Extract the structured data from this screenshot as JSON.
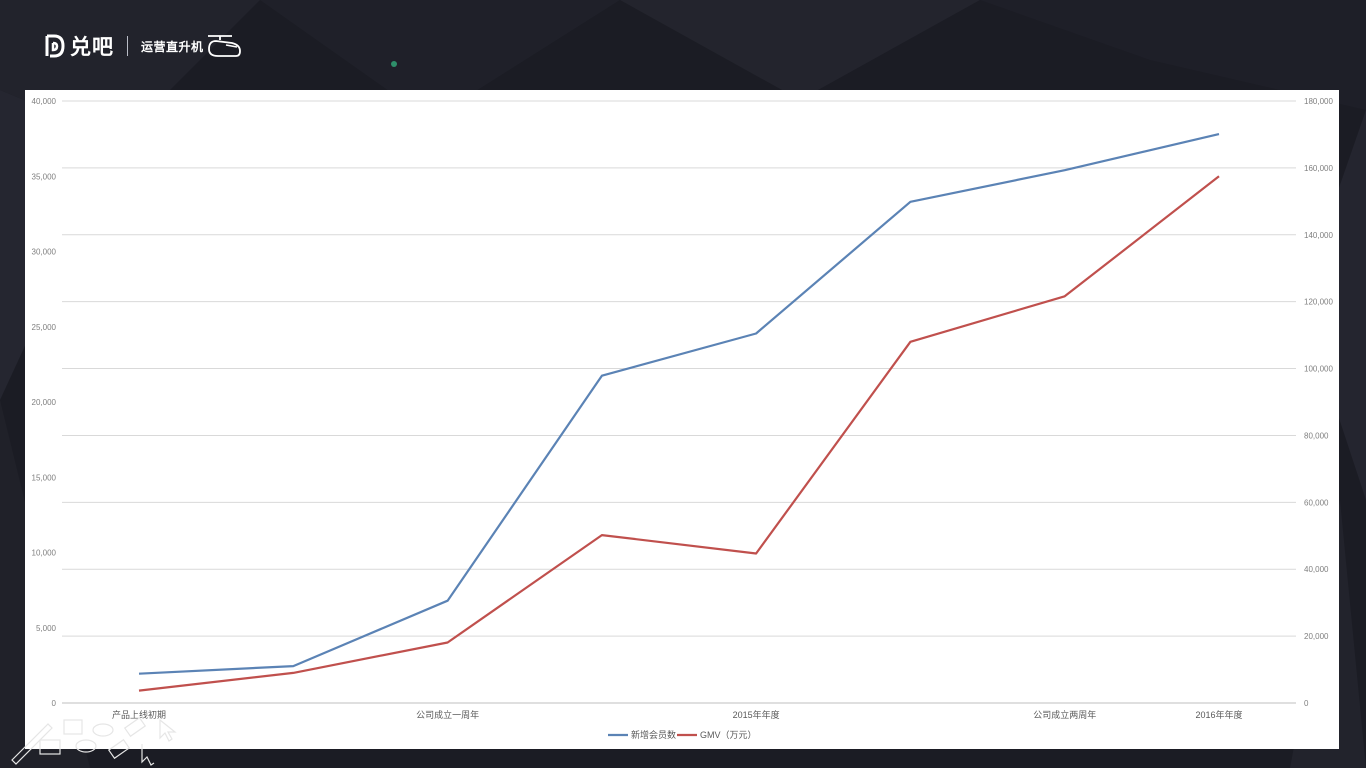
{
  "brand": {
    "name": "兑吧",
    "slogan": "运营直升机"
  },
  "chart_data": {
    "type": "line",
    "title": "",
    "xlabel": "",
    "ylabel": "",
    "categories": [
      "产品上线初期",
      "",
      "公司成立一周年",
      "",
      "2015年年度",
      "",
      "公司成立两周年",
      "2016年年度"
    ],
    "x_tick_labels": [
      {
        "index": 0,
        "label": "产品上线初期"
      },
      {
        "index": 2,
        "label": "公司成立一周年"
      },
      {
        "index": 4,
        "label": "2015年年度"
      },
      {
        "index": 6,
        "label": "公司成立两周年"
      },
      {
        "index": 7,
        "label": "2016年年度"
      }
    ],
    "y_left": {
      "min": 0,
      "max": 40000,
      "step": 5000,
      "ticks": [
        "0",
        "5,000",
        "10,000",
        "15,000",
        "20,000",
        "25,000",
        "30,000",
        "35,000",
        "40,000"
      ]
    },
    "y_right": {
      "min": 0,
      "max": 180000,
      "step": 20000,
      "ticks": [
        "0",
        "20,000",
        "40,000",
        "60,000",
        "80,000",
        "100,000",
        "120,000",
        "140,000",
        "160,000",
        "180,000"
      ]
    },
    "grid": true,
    "legend_position": "bottom",
    "series": [
      {
        "name": "新增会员数",
        "axis": "left",
        "color": "#5b83b5",
        "values": [
          1950,
          2450,
          6800,
          21750,
          24550,
          33300,
          35400,
          37800
        ]
      },
      {
        "name": "GMV（万元）",
        "axis": "right",
        "color": "#c0504d",
        "values": [
          3700,
          9000,
          18100,
          50200,
          44700,
          108000,
          121600,
          157500
        ]
      }
    ]
  }
}
